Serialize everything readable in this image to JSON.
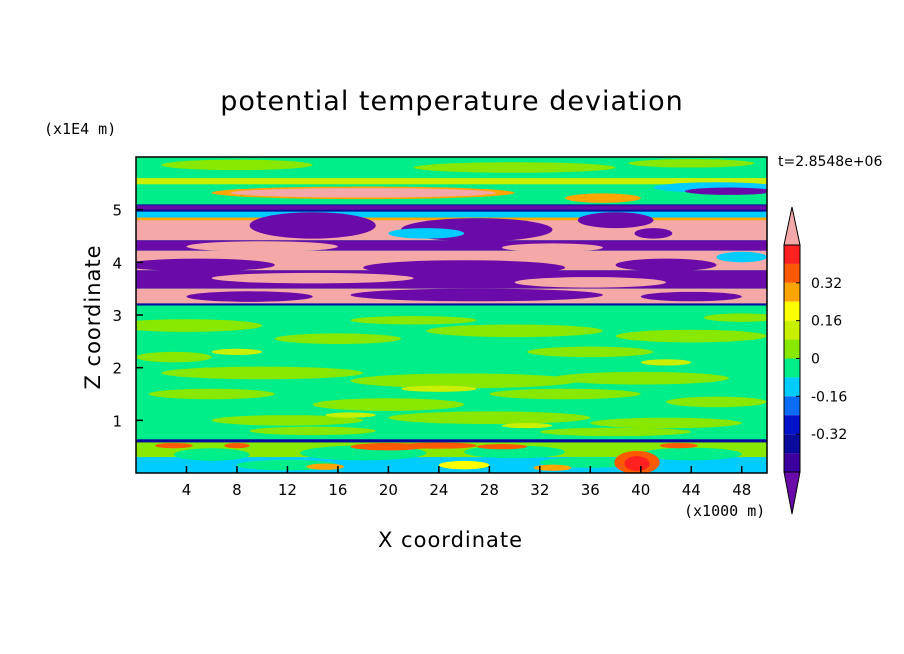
{
  "title": "potential temperature deviation",
  "time_label": "t=2.8548e+06",
  "x_unit": "(x1000 m)",
  "y_unit": "(x1E4 m)",
  "colors": {
    "lt_m048": "#6a0aa8",
    "lt_m040": "#3b009e",
    "m040_m032": "#0a0a9c",
    "m032_m024": "#0012cc",
    "m024_m016": "#0a6cf2",
    "m016_m008": "#00ccff",
    "m008_0": "#00ee8a",
    "0_008": "#88e800",
    "008_016": "#c8f000",
    "016_024": "#ffff00",
    "024_032": "#ffa500",
    "032_040": "#ff5a00",
    "040_048": "#ff2020",
    "gt_048": "#f4a8a8"
  },
  "chart_data": {
    "type": "heatmap",
    "title": "potential temperature deviation",
    "xlabel": "X coordinate",
    "ylabel": "Z coordinate",
    "x_unit": "(x1000 m)",
    "y_unit": "(x1E4 m)",
    "xlim": [
      0,
      50
    ],
    "ylim": [
      0,
      6
    ],
    "x_ticks": [
      4,
      8,
      12,
      16,
      20,
      24,
      28,
      32,
      36,
      40,
      44,
      48
    ],
    "y_ticks": [
      1,
      2,
      3,
      4,
      5
    ],
    "colorbar": {
      "tick_labels": [
        "0.32",
        "0.16",
        "0",
        "-0.16",
        "-0.32"
      ],
      "tick_values": [
        0.32,
        0.16,
        0,
        -0.16,
        -0.32
      ],
      "levels": [
        -0.48,
        -0.4,
        -0.32,
        -0.24,
        -0.16,
        -0.08,
        0,
        0.08,
        0.16,
        0.24,
        0.32,
        0.4,
        0.48
      ]
    },
    "bands": [
      {
        "z": [
          5.6,
          6.0
        ],
        "value": "mixed weak"
      },
      {
        "z": [
          5.3,
          5.5
        ],
        "value": ">0.48"
      },
      {
        "z": [
          4.9,
          5.1
        ],
        "value": "<-0.48"
      },
      {
        "z": [
          4.4,
          4.8
        ],
        "value": "alternating strong"
      },
      {
        "z": [
          3.8,
          4.3
        ],
        "value": "alternating strong"
      },
      {
        "z": [
          3.2,
          3.7
        ],
        "value": "alternating strong"
      },
      {
        "z": [
          0.7,
          3.1
        ],
        "value": "near 0"
      },
      {
        "z": [
          0.55,
          0.65
        ],
        "value": "<-0.32"
      },
      {
        "z": [
          0.0,
          0.55
        ],
        "value": "mixed"
      }
    ],
    "grid": false,
    "legend": "right colorbar"
  }
}
